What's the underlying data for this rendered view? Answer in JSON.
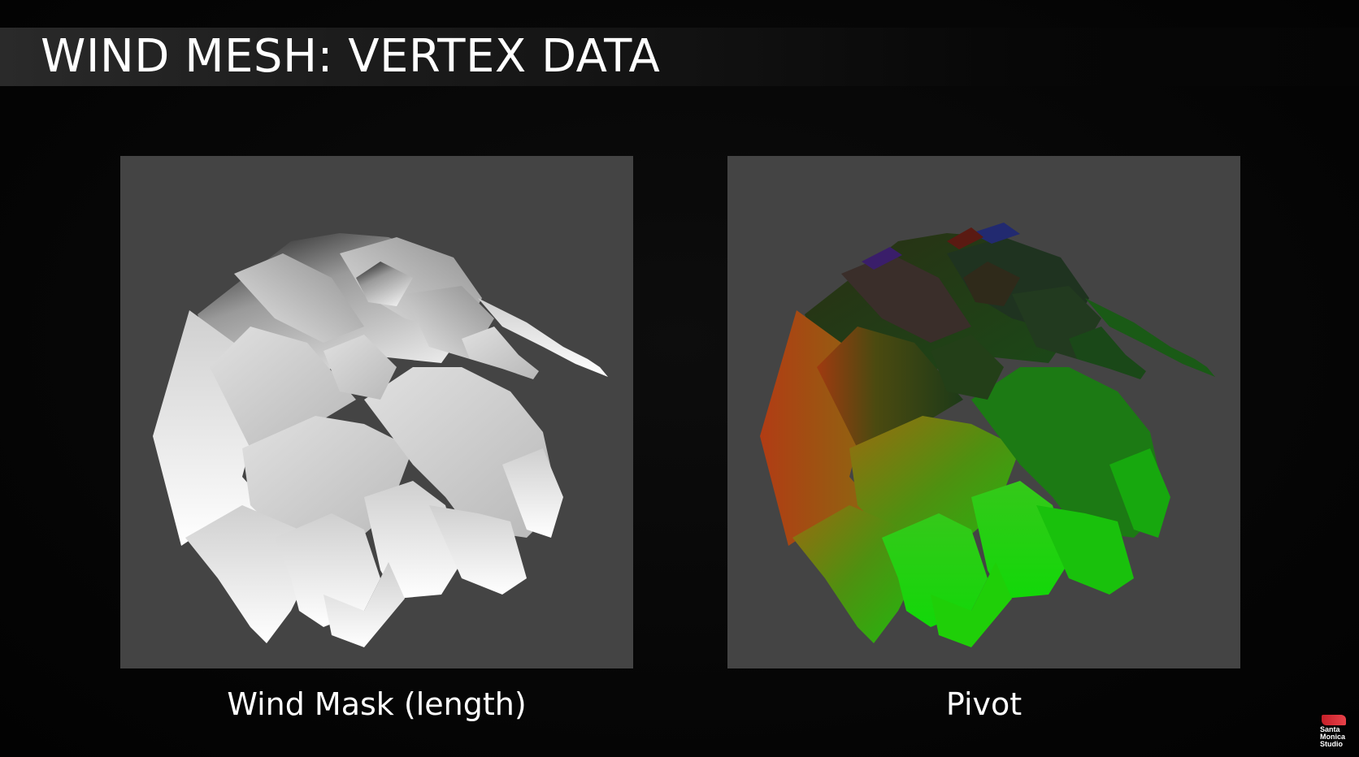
{
  "slide": {
    "title": "WIND MESH: VERTEX DATA"
  },
  "panels": [
    {
      "caption": "Wind Mask (length)",
      "icon": "grayscale-foliage-mesh-render"
    },
    {
      "caption": "Pivot",
      "icon": "rgb-foliage-mesh-render"
    }
  ],
  "logo": {
    "lines": [
      "Santa",
      "Monica",
      "Studio"
    ],
    "accent": "#d32f35"
  },
  "colors": {
    "background": "#050505",
    "panel": "#444444",
    "text": "#ffffff"
  }
}
